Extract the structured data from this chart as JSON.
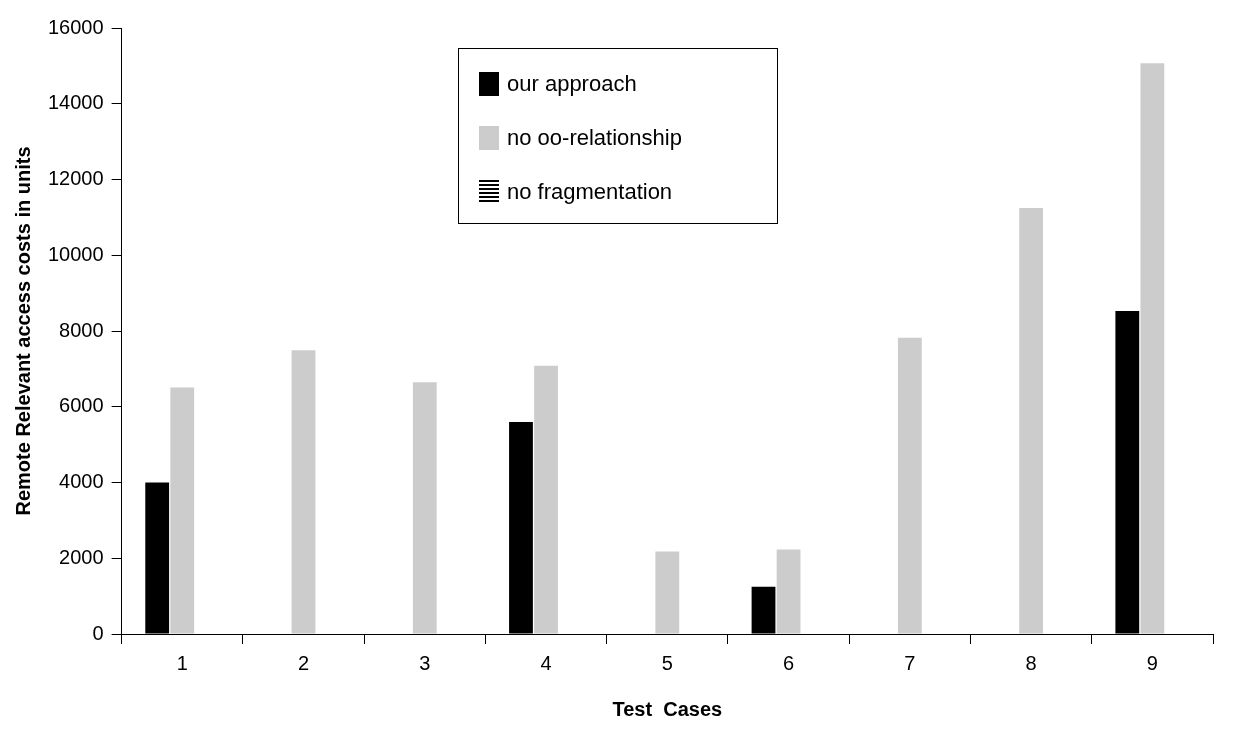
{
  "chart_data": {
    "type": "bar",
    "xlabel": "Test  Cases",
    "ylabel": "Remote Relevant access costs in units",
    "categories": [
      "1",
      "2",
      "3",
      "4",
      "5",
      "6",
      "7",
      "8",
      "9"
    ],
    "series": [
      {
        "name": "our approach",
        "color": "#000000",
        "values": [
          4000,
          0,
          0,
          5600,
          0,
          1250,
          0,
          0,
          8530
        ]
      },
      {
        "name": "no oo-relationship",
        "color": "#cccccc",
        "values": [
          6510,
          7490,
          6650,
          7080,
          2180,
          2230,
          7820,
          11250,
          15070
        ]
      },
      {
        "name": "no fragmentation",
        "color": "#000000",
        "values": [
          null,
          null,
          null,
          null,
          null,
          null,
          null,
          null,
          null
        ]
      }
    ],
    "ylim": [
      0,
      16000
    ],
    "yticks": [
      0,
      2000,
      4000,
      6000,
      8000,
      10000,
      12000,
      14000,
      16000
    ],
    "grid": false,
    "legend": "top"
  }
}
